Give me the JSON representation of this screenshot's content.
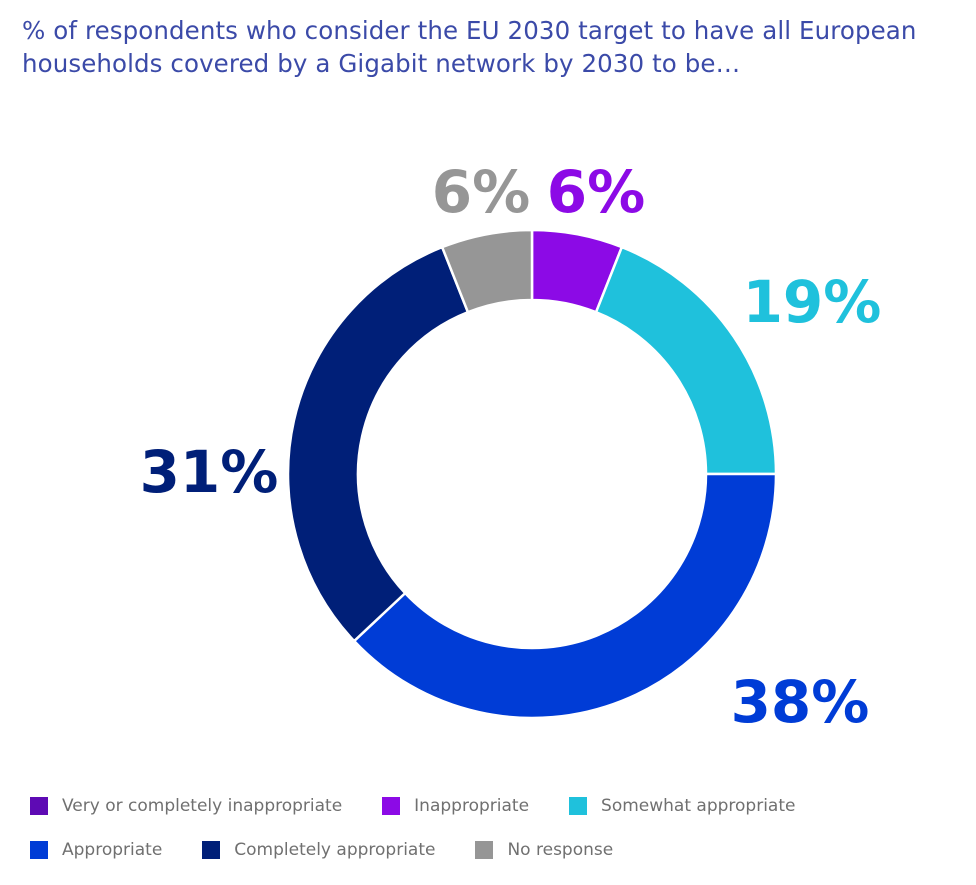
{
  "chart_data": {
    "type": "pie",
    "variant": "donut",
    "title": "% of respondents who consider the EU 2030 target to have all European households covered by a Gigabit network by 2030 to be…",
    "start": "top",
    "direction": "clockwise",
    "slices": [
      {
        "name": "Very or completely inappropriate",
        "value": 0,
        "color": "#5e0ab4",
        "label": ""
      },
      {
        "name": "Inappropriate",
        "value": 6,
        "color": "#8c0ae6",
        "label": "6%"
      },
      {
        "name": "Somewhat appropriate",
        "value": 19,
        "color": "#1fc1dc",
        "label": "19%"
      },
      {
        "name": "Appropriate",
        "value": 38,
        "color": "#003cd6",
        "label": "38%"
      },
      {
        "name": "Completely appropriate",
        "value": 31,
        "color": "#001f78",
        "label": "31%"
      },
      {
        "name": "No response",
        "value": 6,
        "color": "#969696",
        "label": "6%"
      }
    ],
    "legend": {
      "placement": "bottom",
      "rows": [
        [
          "Very or completely inappropriate",
          "Inappropriate",
          "Somewhat appropriate"
        ],
        [
          "Appropriate",
          "Completely appropriate",
          "No response"
        ]
      ]
    }
  }
}
